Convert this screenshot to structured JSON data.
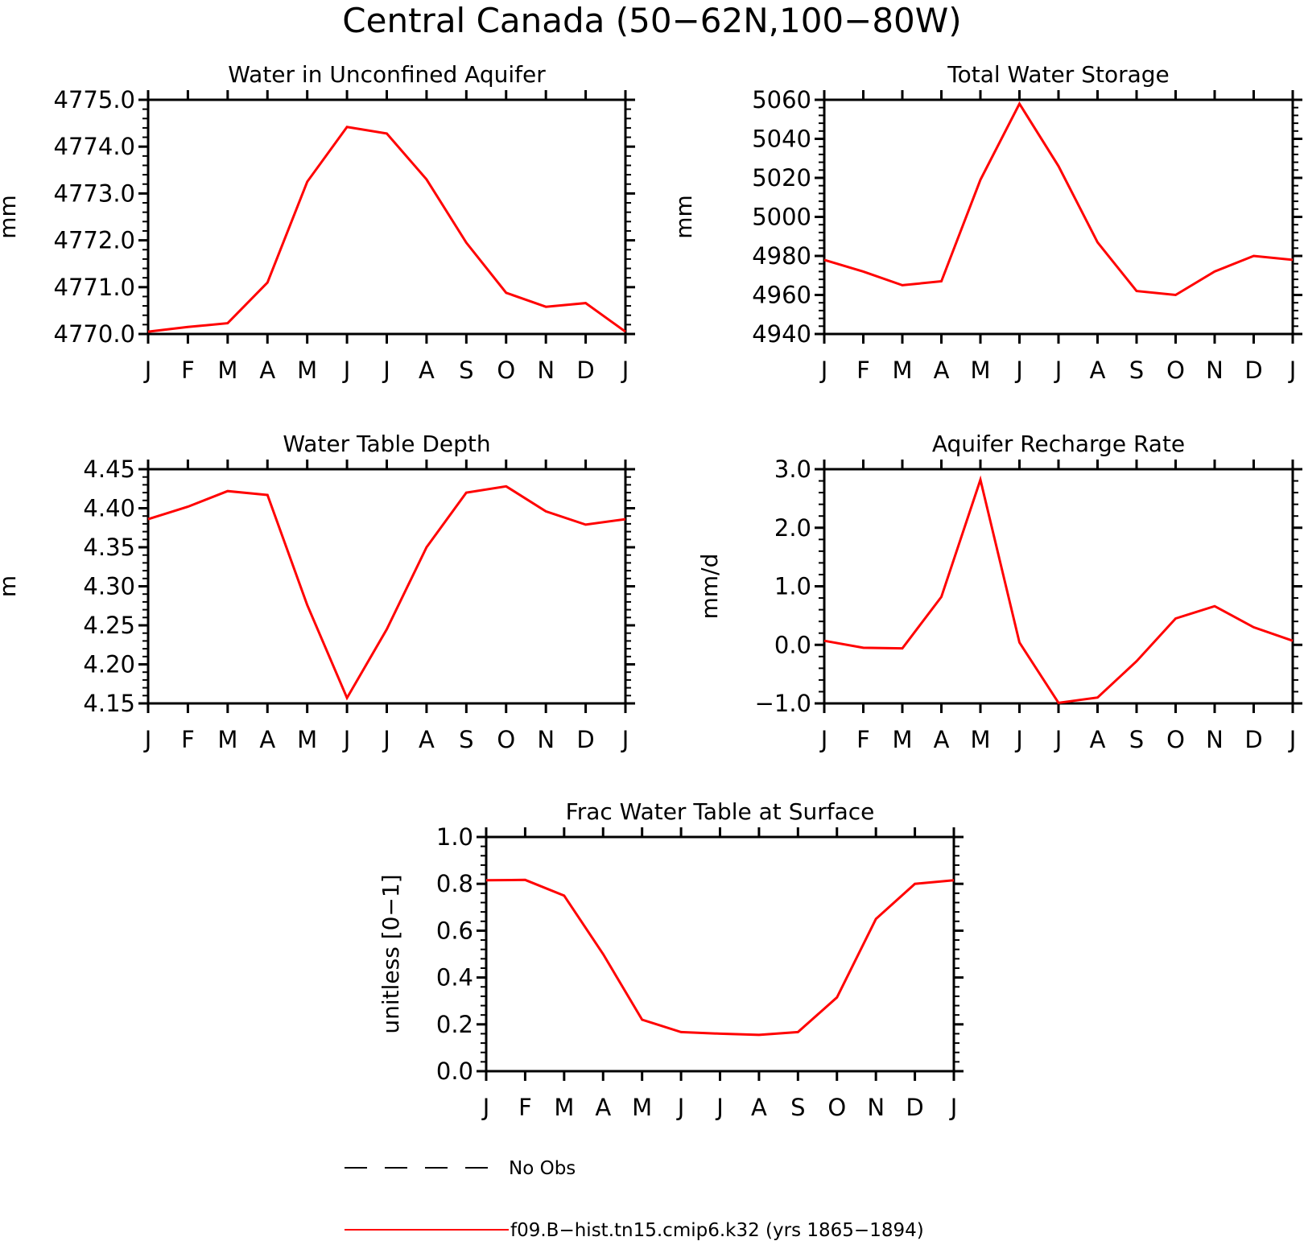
{
  "title": "Central Canada (50−62N,100−80W)",
  "chart_data": [
    {
      "type": "line",
      "title": "Water in Unconfined Aquifer",
      "ylabel": "mm",
      "xlabel": "",
      "categories": [
        "J",
        "F",
        "M",
        "A",
        "M",
        "J",
        "J",
        "A",
        "S",
        "O",
        "N",
        "D",
        "J"
      ],
      "ylim": [
        4770.0,
        4775.0
      ],
      "yticks": [
        "4770.0",
        "4771.0",
        "4772.0",
        "4773.0",
        "4774.0",
        "4775.0"
      ],
      "series": [
        {
          "name": "f09.B−hist.tn15.cmip6.k32 (yrs 1865−1894)",
          "color": "#ff0000",
          "values": [
            4770.05,
            4770.15,
            4770.23,
            4771.1,
            4773.25,
            4774.42,
            4774.28,
            4773.3,
            4771.95,
            4770.88,
            4770.58,
            4770.66,
            4770.05
          ]
        }
      ]
    },
    {
      "type": "line",
      "title": "Total Water Storage",
      "ylabel": "mm",
      "xlabel": "",
      "categories": [
        "J",
        "F",
        "M",
        "A",
        "M",
        "J",
        "J",
        "A",
        "S",
        "O",
        "N",
        "D",
        "J"
      ],
      "ylim": [
        4940,
        5060
      ],
      "yticks": [
        "4940",
        "4960",
        "4980",
        "5000",
        "5020",
        "5040",
        "5060"
      ],
      "series": [
        {
          "name": "f09.B−hist.tn15.cmip6.k32 (yrs 1865−1894)",
          "color": "#ff0000",
          "values": [
            4978,
            4972,
            4965,
            4967,
            5019,
            5058,
            5026,
            4987,
            4962,
            4960,
            4972,
            4980,
            4978
          ]
        }
      ]
    },
    {
      "type": "line",
      "title": "Water Table Depth",
      "ylabel": "m",
      "xlabel": "",
      "categories": [
        "J",
        "F",
        "M",
        "A",
        "M",
        "J",
        "J",
        "A",
        "S",
        "O",
        "N",
        "D",
        "J"
      ],
      "ylim": [
        4.15,
        4.45
      ],
      "yticks": [
        "4.15",
        "4.20",
        "4.25",
        "4.30",
        "4.35",
        "4.40",
        "4.45"
      ],
      "series": [
        {
          "name": "f09.B−hist.tn15.cmip6.k32 (yrs 1865−1894)",
          "color": "#ff0000",
          "values": [
            4.386,
            4.402,
            4.422,
            4.417,
            4.276,
            4.157,
            4.245,
            4.35,
            4.42,
            4.428,
            4.396,
            4.379,
            4.386
          ]
        }
      ]
    },
    {
      "type": "line",
      "title": "Aquifer Recharge Rate",
      "ylabel": "mm/d",
      "xlabel": "",
      "categories": [
        "J",
        "F",
        "M",
        "A",
        "M",
        "J",
        "J",
        "A",
        "S",
        "O",
        "N",
        "D",
        "J"
      ],
      "ylim": [
        -1.0,
        3.0
      ],
      "yticks": [
        "−1.0",
        "0.0",
        "1.0",
        "2.0",
        "3.0"
      ],
      "series": [
        {
          "name": "f09.B−hist.tn15.cmip6.k32 (yrs 1865−1894)",
          "color": "#ff0000",
          "values": [
            0.07,
            -0.05,
            -0.06,
            0.82,
            2.82,
            0.04,
            -0.99,
            -0.9,
            -0.28,
            0.45,
            0.66,
            0.3,
            0.07
          ]
        }
      ]
    },
    {
      "type": "line",
      "title": "Frac Water Table at Surface",
      "ylabel": "unitless [0−1]",
      "xlabel": "",
      "categories": [
        "J",
        "F",
        "M",
        "A",
        "M",
        "J",
        "J",
        "A",
        "S",
        "O",
        "N",
        "D",
        "J"
      ],
      "ylim": [
        0.0,
        1.0
      ],
      "yticks": [
        "0.0",
        "0.2",
        "0.4",
        "0.6",
        "0.8",
        "1.0"
      ],
      "series": [
        {
          "name": "f09.B−hist.tn15.cmip6.k32 (yrs 1865−1894)",
          "color": "#ff0000",
          "values": [
            0.815,
            0.817,
            0.75,
            0.5,
            0.22,
            0.167,
            0.16,
            0.155,
            0.167,
            0.315,
            0.65,
            0.8,
            0.815
          ]
        }
      ]
    }
  ],
  "legend": {
    "items": [
      {
        "label": "No Obs",
        "style": "dashed",
        "color": "#000000"
      },
      {
        "label": "f09.B−hist.tn15.cmip6.k32 (yrs 1865−1894)",
        "style": "solid",
        "color": "#ff0000"
      }
    ]
  }
}
